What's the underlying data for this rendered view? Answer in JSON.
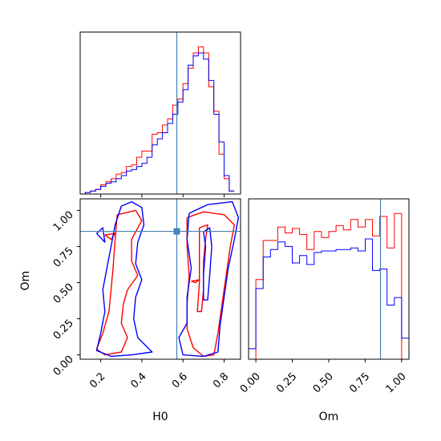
{
  "chart_data": [
    {
      "type": "histogram",
      "panel": "H0 marginal",
      "xlim": [
        0.1,
        0.88
      ],
      "truth_value": 0.57,
      "bins": [
        0.1,
        0.125,
        0.15,
        0.175,
        0.2,
        0.225,
        0.25,
        0.275,
        0.3,
        0.325,
        0.35,
        0.375,
        0.4,
        0.425,
        0.45,
        0.475,
        0.5,
        0.525,
        0.55,
        0.575,
        0.6,
        0.625,
        0.65,
        0.675,
        0.7,
        0.725,
        0.75,
        0.775,
        0.8,
        0.825,
        0.85
      ],
      "series": [
        {
          "color": "#ff0000",
          "counts": [
            0,
            1,
            2,
            3,
            6,
            8,
            10,
            13,
            14,
            18,
            19,
            24,
            28,
            28,
            39,
            40,
            45,
            49,
            58,
            62,
            72,
            82,
            92,
            96,
            92,
            70,
            54,
            26,
            10,
            2
          ]
        },
        {
          "color": "#0000ff",
          "counts": [
            0,
            1,
            2,
            3,
            5,
            7,
            8,
            10,
            12,
            15,
            16,
            18,
            20,
            24,
            32,
            36,
            40,
            46,
            52,
            60,
            68,
            84,
            90,
            92,
            88,
            74,
            52,
            34,
            12,
            2
          ]
        }
      ]
    },
    {
      "type": "contour",
      "panel": "H0 vs Om",
      "xlabel": "H0",
      "ylabel": "Om",
      "xlim": [
        0.1,
        0.88
      ],
      "ylim": [
        -0.03,
        1.08
      ],
      "xticks": [
        "0.2",
        "0.4",
        "0.6",
        "0.8"
      ],
      "xtick_values": [
        0.2,
        0.4,
        0.6,
        0.8
      ],
      "yticks": [
        "0.00",
        "0.25",
        "0.50",
        "0.75",
        "1.00"
      ],
      "ytick_values": [
        0.0,
        0.25,
        0.5,
        0.75,
        1.0
      ],
      "truth_point": [
        0.57,
        0.855
      ],
      "series": [
        {
          "color": "#ff0000",
          "contours": [
            [
              [
                0.28,
                0.97
              ],
              [
                0.37,
                1.0
              ],
              [
                0.4,
                0.93
              ],
              [
                0.35,
                0.8
              ],
              [
                0.35,
                0.65
              ],
              [
                0.38,
                0.55
              ],
              [
                0.33,
                0.45
              ],
              [
                0.31,
                0.35
              ],
              [
                0.3,
                0.22
              ],
              [
                0.33,
                0.12
              ],
              [
                0.3,
                0.02
              ],
              [
                0.22,
                0.0
              ],
              [
                0.18,
                0.04
              ],
              [
                0.21,
                0.15
              ],
              [
                0.24,
                0.3
              ],
              [
                0.25,
                0.45
              ],
              [
                0.26,
                0.6
              ],
              [
                0.27,
                0.8
              ],
              [
                0.28,
                0.97
              ]
            ],
            [
              [
                0.62,
                0.95
              ],
              [
                0.7,
                0.99
              ],
              [
                0.8,
                0.97
              ],
              [
                0.85,
                0.9
              ],
              [
                0.83,
                0.75
              ],
              [
                0.81,
                0.55
              ],
              [
                0.79,
                0.35
              ],
              [
                0.77,
                0.15
              ],
              [
                0.75,
                0.0
              ],
              [
                0.7,
                -0.01
              ],
              [
                0.65,
                0.05
              ],
              [
                0.62,
                0.18
              ],
              [
                0.62,
                0.35
              ],
              [
                0.63,
                0.55
              ],
              [
                0.62,
                0.75
              ],
              [
                0.62,
                0.95
              ]
            ],
            [
              [
                0.68,
                0.88
              ],
              [
                0.72,
                0.9
              ],
              [
                0.71,
                0.8
              ],
              [
                0.7,
                0.65
              ],
              [
                0.7,
                0.45
              ],
              [
                0.69,
                0.3
              ],
              [
                0.67,
                0.3
              ],
              [
                0.68,
                0.5
              ],
              [
                0.68,
                0.7
              ],
              [
                0.68,
                0.88
              ]
            ],
            [
              [
                0.64,
                0.51
              ],
              [
                0.68,
                0.52
              ],
              [
                0.66,
                0.5
              ],
              [
                0.64,
                0.51
              ]
            ],
            [
              [
                0.22,
                0.83
              ],
              [
                0.27,
                0.84
              ],
              [
                0.25,
                0.8
              ],
              [
                0.22,
                0.83
              ]
            ]
          ]
        },
        {
          "color": "#0000ff",
          "contours": [
            [
              [
                0.3,
                1.03
              ],
              [
                0.35,
                1.06
              ],
              [
                0.4,
                1.02
              ],
              [
                0.41,
                0.9
              ],
              [
                0.38,
                0.78
              ],
              [
                0.37,
                0.63
              ],
              [
                0.4,
                0.52
              ],
              [
                0.37,
                0.4
              ],
              [
                0.36,
                0.25
              ],
              [
                0.38,
                0.12
              ],
              [
                0.45,
                0.02
              ],
              [
                0.35,
                0.0
              ],
              [
                0.25,
                -0.01
              ],
              [
                0.18,
                0.03
              ],
              [
                0.2,
                0.15
              ],
              [
                0.22,
                0.3
              ],
              [
                0.21,
                0.45
              ],
              [
                0.23,
                0.6
              ],
              [
                0.25,
                0.75
              ],
              [
                0.27,
                0.9
              ],
              [
                0.3,
                1.03
              ]
            ],
            [
              [
                0.63,
                0.98
              ],
              [
                0.72,
                1.04
              ],
              [
                0.84,
                1.06
              ],
              [
                0.87,
                0.95
              ],
              [
                0.85,
                0.8
              ],
              [
                0.82,
                0.6
              ],
              [
                0.8,
                0.4
              ],
              [
                0.78,
                0.2
              ],
              [
                0.77,
                0.02
              ],
              [
                0.7,
                -0.01
              ],
              [
                0.6,
                0.0
              ],
              [
                0.58,
                0.12
              ],
              [
                0.62,
                0.22
              ],
              [
                0.62,
                0.4
              ],
              [
                0.64,
                0.6
              ],
              [
                0.62,
                0.8
              ],
              [
                0.63,
                0.98
              ]
            ],
            [
              [
                0.7,
                0.85
              ],
              [
                0.73,
                0.88
              ],
              [
                0.74,
                0.75
              ],
              [
                0.73,
                0.55
              ],
              [
                0.72,
                0.38
              ],
              [
                0.7,
                0.38
              ],
              [
                0.7,
                0.55
              ],
              [
                0.71,
                0.75
              ],
              [
                0.7,
                0.85
              ]
            ],
            [
              [
                0.18,
                0.84
              ],
              [
                0.21,
                0.88
              ],
              [
                0.22,
                0.78
              ],
              [
                0.18,
                0.84
              ]
            ]
          ]
        }
      ]
    },
    {
      "type": "histogram",
      "panel": "Om marginal",
      "xlabel": "Om",
      "xlim": [
        -0.05,
        1.05
      ],
      "xticks": [
        "0.00",
        "0.25",
        "0.50",
        "0.75",
        "1.00"
      ],
      "xtick_values": [
        0.0,
        0.25,
        0.5,
        0.75,
        1.0
      ],
      "truth_value": 0.855,
      "bins": [
        -0.05,
        0.0,
        0.05,
        0.1,
        0.15,
        0.2,
        0.25,
        0.3,
        0.35,
        0.4,
        0.45,
        0.5,
        0.55,
        0.6,
        0.65,
        0.7,
        0.75,
        0.8,
        0.85,
        0.9,
        0.95,
        1.0,
        1.05
      ],
      "series": [
        {
          "color": "#ff0000",
          "counts": [
            0,
            53,
            79,
            79,
            88,
            84,
            87,
            83,
            73,
            85,
            81,
            85,
            89,
            86,
            93,
            88,
            93,
            82,
            95,
            74,
            97,
            0
          ]
        },
        {
          "color": "#0000ff",
          "counts": [
            7,
            47,
            68,
            73,
            78,
            75,
            64,
            69,
            63,
            71,
            72,
            72,
            73,
            73,
            74,
            72,
            80,
            59,
            60,
            36,
            41,
            14
          ]
        }
      ]
    }
  ]
}
